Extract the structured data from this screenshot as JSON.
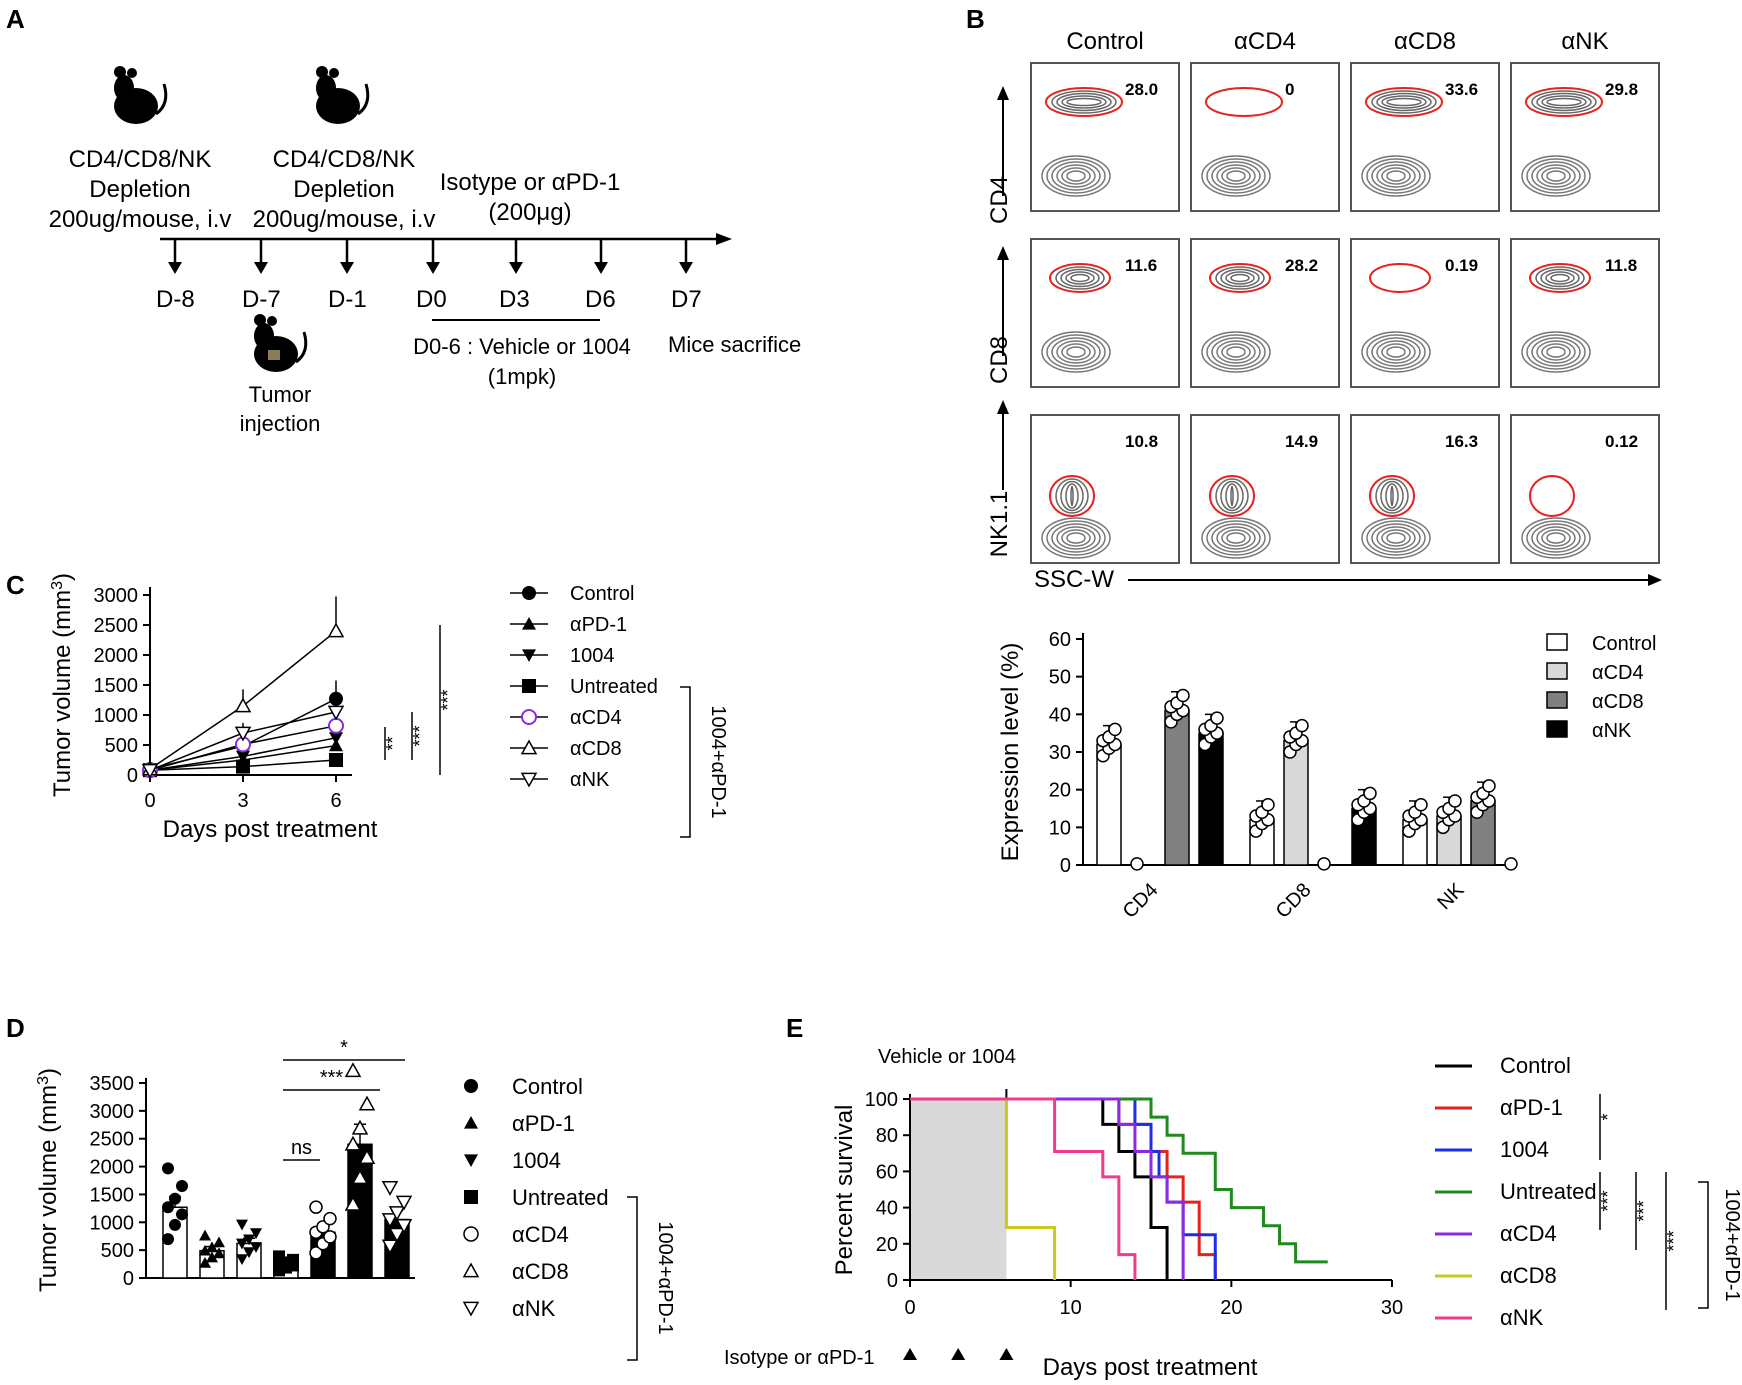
{
  "panels": {
    "a": "A",
    "b": "B",
    "c": "C",
    "d": "D",
    "e": "E"
  },
  "panelA": {
    "dep1": [
      "CD4/CD8/NK",
      "Depletion",
      "200ug/mouse, i.v"
    ],
    "dep2": [
      "CD4/CD8/NK",
      "Depletion",
      "200ug/mouse, i.v"
    ],
    "iso": [
      "Isotype or αPD-1",
      "(200μg)"
    ],
    "days": [
      "D-8",
      "D-7",
      "D-1",
      "D0",
      "D3",
      "D6",
      "D7"
    ],
    "tumor": [
      "Tumor",
      "injection"
    ],
    "vehicle": [
      "D0-6 : Vehicle or 1004",
      "(1mpk)"
    ],
    "sacrifice": "Mice sacrifice"
  },
  "panelB": {
    "cols": [
      "Control",
      "αCD4",
      "αCD8",
      "αNK"
    ],
    "rows": [
      "CD4",
      "CD8",
      "NK1.1"
    ],
    "values": [
      [
        "28.0",
        "0",
        "33.6",
        "29.8"
      ],
      [
        "11.6",
        "28.2",
        "0.19",
        "11.8"
      ],
      [
        "10.8",
        "14.9",
        "16.3",
        "0.12"
      ]
    ],
    "xaxis": "SSC-W"
  },
  "colors": {
    "red": "#e8211d",
    "blue": "#1c2fe6",
    "green": "#1f8a1f",
    "purple": "#8a2be2",
    "olive": "#c8c81e",
    "pink": "#ef3c8c",
    "grey": "#d9d9d9"
  },
  "chart_data": [
    {
      "id": "C",
      "type": "line",
      "xlabel": "Days post treatment",
      "ylabel": "Tumor volume (mm3)",
      "ylim": [
        0,
        3000
      ],
      "x": [
        0,
        3,
        6
      ],
      "xticks": [
        "0",
        "3",
        "6"
      ],
      "yticks": [
        "0",
        "500",
        "1000",
        "1500",
        "2000",
        "2500",
        "3000"
      ],
      "series": [
        {
          "name": "Control",
          "values": [
            100,
            480,
            1270
          ]
        },
        {
          "name": "αPD-1",
          "values": [
            80,
            250,
            490
          ]
        },
        {
          "name": "1004",
          "values": [
            80,
            310,
            620
          ]
        },
        {
          "name": "Untreated",
          "values": [
            80,
            140,
            250
          ]
        },
        {
          "name": "αCD4",
          "values": [
            80,
            510,
            820
          ]
        },
        {
          "name": "αCD8",
          "values": [
            100,
            1150,
            2400
          ]
        },
        {
          "name": "αNK",
          "values": [
            80,
            700,
            1050
          ]
        }
      ],
      "group_label": "1004+αPD-1",
      "significance": [
        "**",
        "***",
        "***"
      ]
    },
    {
      "id": "B2",
      "type": "bar",
      "ylabel": "Expression level (%)",
      "ylim": [
        0,
        60
      ],
      "yticks": [
        "0",
        "10",
        "20",
        "30",
        "40",
        "50",
        "60"
      ],
      "categories": [
        "CD4",
        "CD8",
        "NK"
      ],
      "series": [
        {
          "name": "Control",
          "values": [
            32,
            12,
            12
          ]
        },
        {
          "name": "αCD4",
          "values": [
            0,
            33,
            13
          ]
        },
        {
          "name": "αCD8",
          "values": [
            41,
            0,
            17
          ]
        },
        {
          "name": "αNK",
          "values": [
            35,
            15,
            0
          ]
        }
      ]
    },
    {
      "id": "D",
      "type": "bar",
      "ylabel": "Tumor volume (mm3)",
      "ylim": [
        0,
        3500
      ],
      "yticks": [
        "0",
        "500",
        "1000",
        "1500",
        "2000",
        "2500",
        "3000",
        "3500"
      ],
      "categories": [
        "Control",
        "αPD-1",
        "1004",
        "Untreated",
        "αCD4",
        "αCD8",
        "αNK"
      ],
      "values": [
        1270,
        490,
        620,
        250,
        820,
        2400,
        1050
      ],
      "group_label": "1004+αPD-1",
      "significance": [
        "*",
        "***",
        "ns"
      ]
    },
    {
      "id": "E",
      "type": "line",
      "xlabel": "Days post treatment",
      "ylabel": "Percent survival",
      "xlim": [
        0,
        30
      ],
      "ylim": [
        0,
        100
      ],
      "xticks": [
        "0",
        "10",
        "20",
        "30"
      ],
      "yticks": [
        "0",
        "20",
        "40",
        "60",
        "80",
        "100"
      ],
      "annotation": "Vehicle or 1004",
      "arrow_label": "Isotype or αPD-1",
      "series": [
        {
          "name": "Control",
          "steps": [
            [
              0,
              100
            ],
            [
              12,
              100
            ],
            [
              12,
              86
            ],
            [
              13,
              86
            ],
            [
              13,
              71
            ],
            [
              14,
              71
            ],
            [
              14,
              57
            ],
            [
              15,
              57
            ],
            [
              15,
              29
            ],
            [
              16,
              29
            ],
            [
              16,
              14
            ],
            [
              16,
              0
            ]
          ]
        },
        {
          "name": "αPD-1",
          "steps": [
            [
              0,
              100
            ],
            [
              13,
              100
            ],
            [
              13,
              86
            ],
            [
              15,
              86
            ],
            [
              15,
              71
            ],
            [
              16,
              71
            ],
            [
              16,
              57
            ],
            [
              17,
              57
            ],
            [
              17,
              43
            ],
            [
              18,
              43
            ],
            [
              18,
              14
            ],
            [
              19,
              14
            ],
            [
              19,
              0
            ]
          ]
        },
        {
          "name": "1004",
          "steps": [
            [
              0,
              100
            ],
            [
              14,
              100
            ],
            [
              14,
              86
            ],
            [
              15,
              86
            ],
            [
              15,
              71
            ],
            [
              15.5,
              71
            ],
            [
              15.5,
              57
            ],
            [
              16,
              57
            ],
            [
              16,
              43
            ],
            [
              17,
              43
            ],
            [
              17,
              25
            ],
            [
              18,
              25
            ],
            [
              19,
              25
            ],
            [
              19,
              0
            ]
          ]
        },
        {
          "name": "Untreated",
          "steps": [
            [
              0,
              100
            ],
            [
              15,
              100
            ],
            [
              15,
              90
            ],
            [
              16,
              90
            ],
            [
              16,
              80
            ],
            [
              17,
              80
            ],
            [
              17,
              70
            ],
            [
              19,
              70
            ],
            [
              19,
              50
            ],
            [
              20,
              50
            ],
            [
              20,
              40
            ],
            [
              22,
              40
            ],
            [
              22,
              30
            ],
            [
              23,
              30
            ],
            [
              23,
              20
            ],
            [
              24,
              20
            ],
            [
              24,
              10
            ],
            [
              26,
              10
            ]
          ]
        },
        {
          "name": "αCD4",
          "steps": [
            [
              0,
              100
            ],
            [
              13,
              100
            ],
            [
              13,
              86
            ],
            [
              14,
              86
            ],
            [
              14,
              71
            ],
            [
              15,
              71
            ],
            [
              15,
              57
            ],
            [
              16,
              57
            ],
            [
              16,
              43
            ],
            [
              17,
              43
            ],
            [
              17,
              0
            ]
          ]
        },
        {
          "name": "αCD8",
          "steps": [
            [
              0,
              100
            ],
            [
              6,
              100
            ],
            [
              6,
              29
            ],
            [
              9,
              29
            ],
            [
              9,
              0
            ]
          ]
        },
        {
          "name": "αNK",
          "steps": [
            [
              0,
              100
            ],
            [
              9,
              100
            ],
            [
              9,
              71
            ],
            [
              12,
              71
            ],
            [
              12,
              57
            ],
            [
              13,
              57
            ],
            [
              13,
              43
            ],
            [
              13,
              14
            ],
            [
              14,
              14
            ],
            [
              14,
              0
            ]
          ]
        }
      ],
      "group_label": "1004+αPD-1",
      "significance": [
        "*",
        "***",
        "***",
        "***"
      ]
    }
  ]
}
